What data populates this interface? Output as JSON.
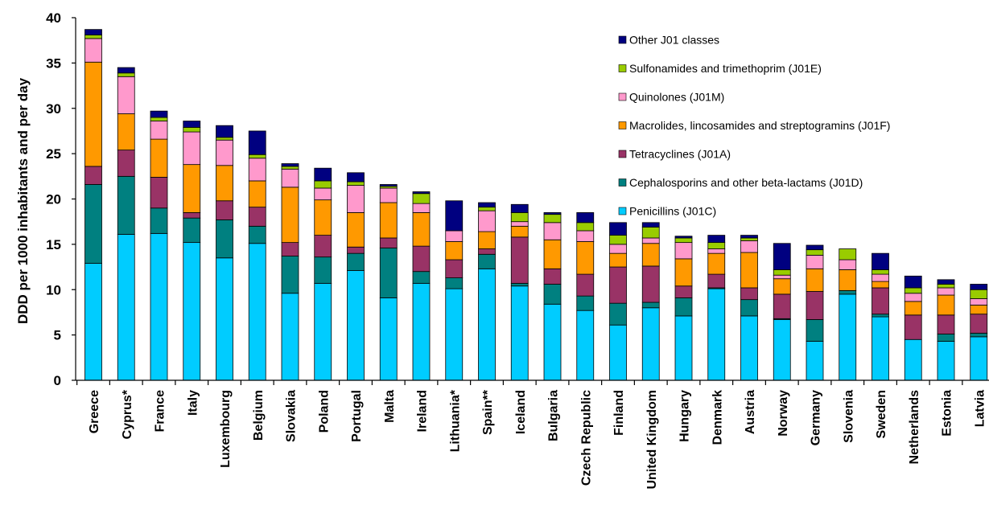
{
  "chart_data": {
    "type": "bar",
    "stacked": true,
    "title": "",
    "xlabel": "",
    "ylabel": "DDD per 1000 inhabitants and per day",
    "ylim": [
      0,
      40
    ],
    "yticks": [
      0,
      5,
      10,
      15,
      20,
      25,
      30,
      35,
      40
    ],
    "grid": false,
    "legend_position": "top-right",
    "categories": [
      "Greece",
      "Cyprus*",
      "France",
      "Italy",
      "Luxembourg",
      "Belgium",
      "Slovakia",
      "Poland",
      "Portugal",
      "Malta",
      "Ireland",
      "Lithuania*",
      "Spain**",
      "Iceland",
      "Bulgaria",
      "Czech Republic",
      "Finland",
      "United Kingdom",
      "Hungary",
      "Denmark",
      "Austria",
      "Norway",
      "Germany",
      "Slovenia",
      "Sweden",
      "Netherlands",
      "Estonia",
      "Latvia"
    ],
    "series": [
      {
        "name": "Penicillins (J01C)",
        "color": "#00CCFF",
        "values": [
          12.9,
          16.1,
          16.2,
          15.2,
          13.5,
          15.1,
          9.6,
          10.7,
          12.1,
          9.1,
          10.7,
          10.1,
          12.3,
          10.4,
          8.4,
          7.7,
          6.1,
          8.0,
          7.1,
          10.1,
          7.1,
          6.7,
          4.3,
          9.5,
          7.0,
          4.5,
          4.3,
          4.8
        ]
      },
      {
        "name": "Cephalosporins and other beta-lactams (J01D)",
        "color": "#008080",
        "values": [
          8.7,
          6.4,
          2.8,
          2.7,
          4.2,
          1.9,
          4.1,
          2.9,
          1.9,
          5.5,
          1.3,
          1.2,
          1.6,
          0.3,
          2.2,
          1.6,
          2.4,
          0.6,
          2.0,
          0.1,
          1.8,
          0.1,
          2.4,
          0.4,
          0.3,
          0.0,
          0.8,
          0.4
        ]
      },
      {
        "name": "Tetracyclines (J01A)",
        "color": "#993366",
        "values": [
          2.0,
          2.9,
          3.4,
          0.6,
          2.1,
          2.1,
          1.5,
          2.4,
          0.7,
          1.1,
          2.8,
          2.0,
          0.6,
          5.1,
          1.7,
          2.4,
          4.0,
          4.0,
          1.3,
          1.5,
          1.3,
          2.7,
          3.1,
          0.0,
          2.9,
          2.7,
          2.1,
          2.1
        ]
      },
      {
        "name": "Macrolides, lincosamides and streptogramins (J01F)",
        "color": "#FF9900",
        "values": [
          11.5,
          4.0,
          4.2,
          5.3,
          3.9,
          2.9,
          6.1,
          3.9,
          3.8,
          3.9,
          3.7,
          2.0,
          1.9,
          1.2,
          3.2,
          3.6,
          1.5,
          2.5,
          3.0,
          2.3,
          3.9,
          1.7,
          2.5,
          2.3,
          0.7,
          1.5,
          2.2,
          1.0
        ]
      },
      {
        "name": "Quinolones (J01M)",
        "color": "#FF99CC",
        "values": [
          2.6,
          4.1,
          2.0,
          3.6,
          2.8,
          2.5,
          2.0,
          1.3,
          3.0,
          1.6,
          1.0,
          1.2,
          2.3,
          0.5,
          1.9,
          1.2,
          1.0,
          0.6,
          1.8,
          0.5,
          1.3,
          0.4,
          1.5,
          1.1,
          0.8,
          0.9,
          0.8,
          0.7
        ]
      },
      {
        "name": "Sulfonamides and trimethoprim (J01E)",
        "color": "#99CC00",
        "values": [
          0.4,
          0.4,
          0.4,
          0.5,
          0.3,
          0.4,
          0.3,
          0.8,
          0.4,
          0.2,
          1.1,
          0.0,
          0.4,
          1.0,
          0.9,
          0.9,
          1.0,
          1.2,
          0.5,
          0.7,
          0.3,
          0.6,
          0.6,
          1.2,
          0.5,
          0.6,
          0.4,
          1.0
        ]
      },
      {
        "name": "Other J01 classes",
        "color": "#000080",
        "values": [
          0.6,
          0.6,
          0.7,
          0.7,
          1.3,
          2.6,
          0.3,
          1.4,
          1.0,
          0.2,
          0.2,
          3.3,
          0.5,
          0.9,
          0.2,
          1.1,
          1.4,
          0.5,
          0.2,
          0.8,
          0.3,
          2.9,
          0.5,
          0.0,
          1.8,
          1.3,
          0.5,
          0.6
        ]
      }
    ]
  }
}
